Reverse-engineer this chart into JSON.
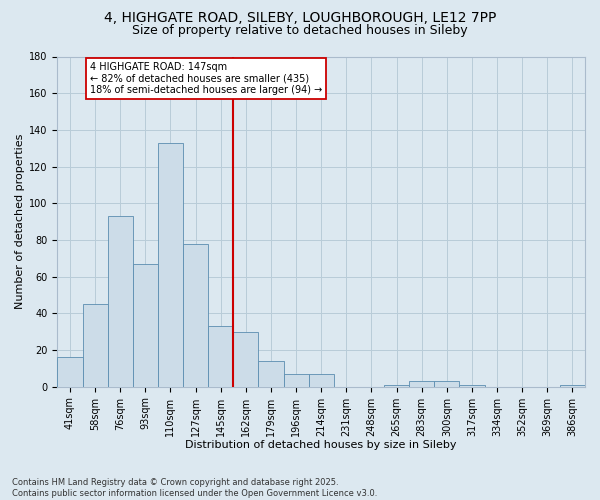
{
  "title1": "4, HIGHGATE ROAD, SILEBY, LOUGHBOROUGH, LE12 7PP",
  "title2": "Size of property relative to detached houses in Sileby",
  "xlabel": "Distribution of detached houses by size in Sileby",
  "ylabel": "Number of detached properties",
  "bar_labels": [
    "41sqm",
    "58sqm",
    "76sqm",
    "93sqm",
    "110sqm",
    "127sqm",
    "145sqm",
    "162sqm",
    "179sqm",
    "196sqm",
    "214sqm",
    "231sqm",
    "248sqm",
    "265sqm",
    "283sqm",
    "300sqm",
    "317sqm",
    "334sqm",
    "352sqm",
    "369sqm",
    "386sqm"
  ],
  "bar_values": [
    16,
    45,
    93,
    67,
    133,
    78,
    33,
    30,
    14,
    7,
    7,
    0,
    0,
    1,
    3,
    3,
    1,
    0,
    0,
    0,
    1
  ],
  "bar_color": "#ccdce8",
  "bar_edge_color": "#5b8db0",
  "annotation_text": "4 HIGHGATE ROAD: 147sqm\n← 82% of detached houses are smaller (435)\n18% of semi-detached houses are larger (94) →",
  "annotation_box_facecolor": "#ffffff",
  "annotation_box_edgecolor": "#cc0000",
  "vline_color": "#cc0000",
  "footer1": "Contains HM Land Registry data © Crown copyright and database right 2025.",
  "footer2": "Contains public sector information licensed under the Open Government Licence v3.0.",
  "bg_color": "#dce8f0",
  "ylim_max": 180,
  "yticks": [
    0,
    20,
    40,
    60,
    80,
    100,
    120,
    140,
    160,
    180
  ],
  "grid_color": "#b8ccd8",
  "title1_fontsize": 10,
  "title2_fontsize": 9,
  "axis_fontsize": 7,
  "xlabel_fontsize": 8,
  "ylabel_fontsize": 8,
  "footer_fontsize": 6,
  "annot_fontsize": 7,
  "vline_bin_index": 6
}
